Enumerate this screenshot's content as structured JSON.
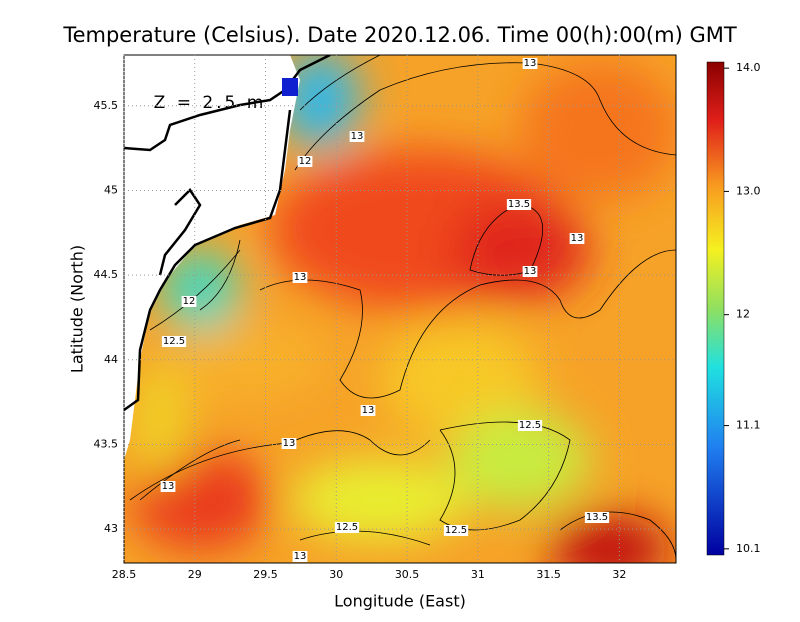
{
  "chart_data": {
    "type": "heatmap",
    "title": "Temperature (Celsius). Date 2020.12.06. Time 00(h):00(m) GMT",
    "x_label": "Longitude (East)",
    "y_label": "Latitude (North)",
    "annotation": "Z = 2.5 m",
    "xlim": [
      28.5,
      32.4
    ],
    "ylim": [
      42.8,
      45.8
    ],
    "xticks": [
      28.5,
      29,
      29.5,
      30,
      30.5,
      31,
      31.5,
      32
    ],
    "yticks": [
      43,
      43.5,
      44,
      44.5,
      45,
      45.5
    ],
    "grid": true,
    "colorbar_lim": [
      10.05,
      14.05
    ],
    "colorbar_ticks": [
      {
        "value": 14.0,
        "label": "14.0"
      },
      {
        "value": 13.0,
        "label": "13.0"
      },
      12,
      {
        "value": 11.1,
        "label": "11.1"
      },
      10.1
    ],
    "contour_labels": [
      "13",
      "13",
      "12",
      "13.5",
      "13",
      "13",
      "13",
      "12",
      "12.5",
      "13",
      "12.5",
      "13",
      "13",
      "13.5",
      "12.5",
      "12.5",
      "13"
    ]
  }
}
